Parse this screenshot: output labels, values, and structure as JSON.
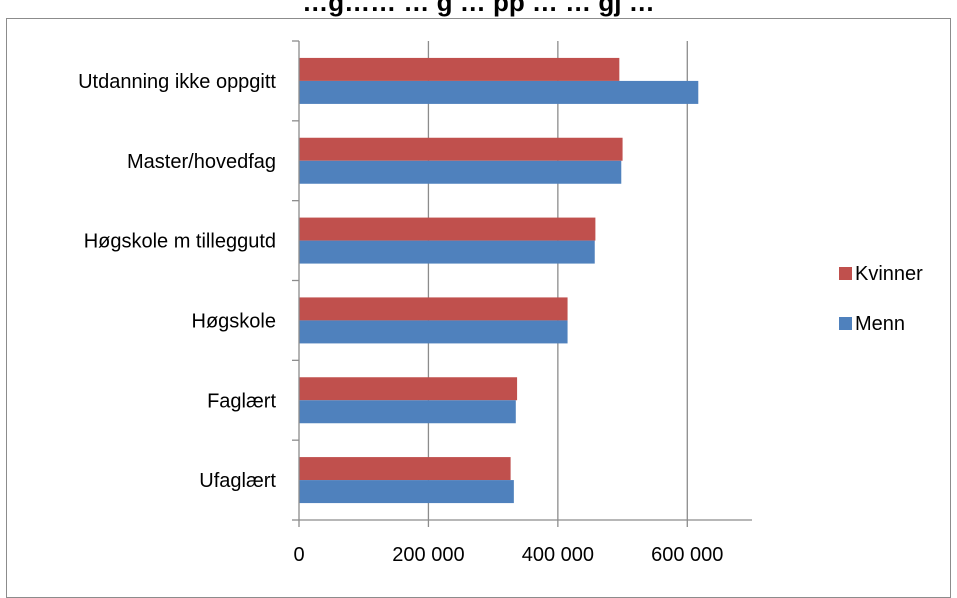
{
  "chart_data": {
    "type": "bar",
    "orientation": "horizontal",
    "title": "…g…… … g … pp … … gj …",
    "categories": [
      "Utdanning ikke oppgitt",
      "Master/hovedfag",
      "Høgskole m tilleggutd",
      "Høgskole",
      "Faglært",
      "Ufaglært"
    ],
    "series": [
      {
        "name": "Kvinner",
        "color": "#c0504d",
        "values": [
          495000,
          500000,
          458000,
          415000,
          337000,
          327000
        ]
      },
      {
        "name": "Menn",
        "color": "#4f81bd",
        "values": [
          617000,
          498000,
          457000,
          415000,
          335000,
          332000
        ]
      }
    ],
    "x_ticks": [
      0,
      200000,
      400000,
      600000
    ],
    "x_tick_labels": [
      "0",
      "200 000",
      "400 000",
      "600 000"
    ],
    "xlim": [
      0,
      700000
    ],
    "grid": true,
    "legend_position": "right",
    "axis_color": "#8c8c8c",
    "grid_color": "#8c8c8c"
  }
}
